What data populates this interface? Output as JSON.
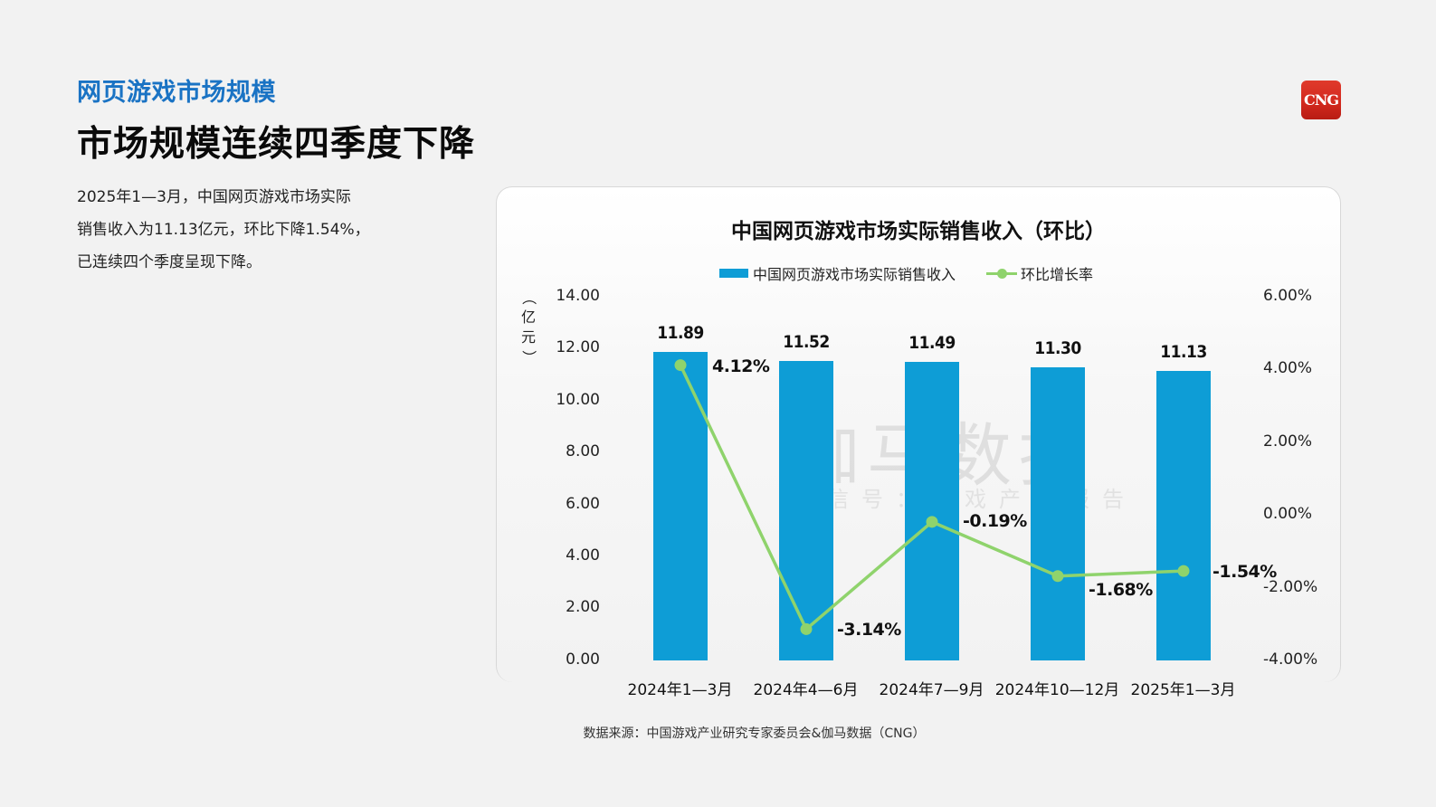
{
  "header": {
    "section_title": "网页游戏市场规模",
    "main_title": "市场规模连续四季度下降",
    "description": [
      "2025年1—3月，中国网页游戏市场实际",
      "销售收入为11.13亿元，环比下降1.54%，",
      "已连续四个季度呈现下降。"
    ],
    "logo_text": "CNG"
  },
  "watermark": {
    "main": "伽马数据",
    "sub": "微信号：游戏产业报告"
  },
  "source": "数据来源：中国游戏产业研究专家委员会&伽马数据（CNG）",
  "colors": {
    "bar": "#0e9dd6",
    "line": "#8fd36c",
    "section_title": "#1a73c4",
    "logo": "#d1281d"
  },
  "chart_data": {
    "type": "bar",
    "title": "中国网页游戏市场实际销售收入（环比）",
    "categories": [
      "2024年1—3月",
      "2024年4—6月",
      "2024年7—9月",
      "2024年10—12月",
      "2025年1—3月"
    ],
    "series": [
      {
        "name": "中国网页游戏市场实际销售收入",
        "type": "bar",
        "axis": "left",
        "values": [
          11.89,
          11.52,
          11.49,
          11.3,
          11.13
        ],
        "labels": [
          "11.89",
          "11.52",
          "11.49",
          "11.30",
          "11.13"
        ]
      },
      {
        "name": "环比增长率",
        "type": "line",
        "axis": "right",
        "values": [
          4.12,
          -3.14,
          -0.19,
          -1.68,
          -1.54
        ],
        "labels": [
          "4.12%",
          "-3.14%",
          "-0.19%",
          "-1.68%",
          "-1.54%"
        ]
      }
    ],
    "ylabel": "（亿元）",
    "ylabel_display": [
      "（",
      "亿",
      "元",
      "）"
    ],
    "ylim": [
      0,
      14
    ],
    "yticks": [
      "14.00",
      "12.00",
      "10.00",
      "8.00",
      "6.00",
      "4.00",
      "2.00",
      "0.00"
    ],
    "y2lim": [
      -4,
      6
    ],
    "y2ticks": [
      "6.00%",
      "4.00%",
      "2.00%",
      "0.00%",
      "-2.00%",
      "-4.00%"
    ],
    "legend_position": "top",
    "grid": false
  }
}
